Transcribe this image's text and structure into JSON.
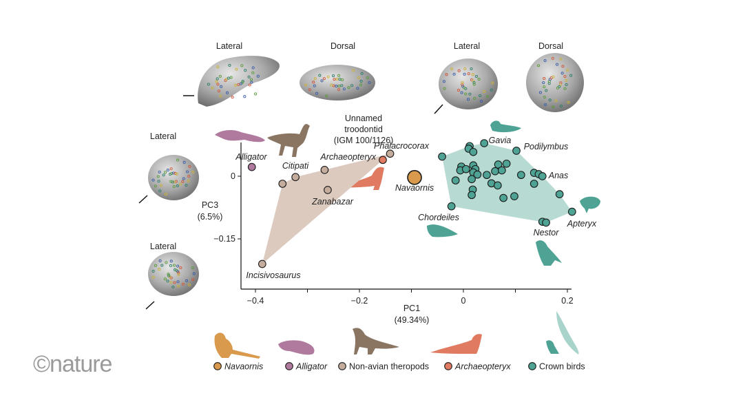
{
  "view_labels": {
    "top_left_lateral": "Lateral",
    "top_left_dorsal": "Dorsal",
    "top_right_lateral": "Lateral",
    "top_right_dorsal": "Dorsal",
    "left_lateral_1": "Lateral",
    "left_lateral_2": "Lateral"
  },
  "logo": "©nature",
  "colors": {
    "navaornis": "#d99a4e",
    "alligator": "#b07a9e",
    "theropods": "#c5ad9d",
    "archaeopteryx": "#e07a60",
    "crown_birds": "#4fa394",
    "theropod_hull": "#dccabe",
    "crown_hull": "#b7dad3"
  },
  "chart_data": {
    "type": "scatter",
    "xlabel": "PC1",
    "xlabel_sub": "(49.34%)",
    "ylabel": "PC3",
    "ylabel_sub": "(6.5%)",
    "xlim": [
      -0.427,
      0.209
    ],
    "ylim": [
      -0.268,
      0.08
    ],
    "x_ticks": [
      -0.4,
      -0.3,
      -0.2,
      -0.1,
      0,
      0.1,
      0.2
    ],
    "x_tick_labels": [
      "−0.4",
      "",
      "−0.2",
      "",
      "0",
      "",
      "0.2"
    ],
    "y_ticks": [
      0,
      -0.15
    ],
    "y_tick_labels": [
      "0",
      "−0.15"
    ],
    "grid": false,
    "legend_placement": "bottom",
    "legend": [
      {
        "label": "Navaornis",
        "group": "navaornis",
        "italic": true
      },
      {
        "label": "Alligator",
        "group": "alligator",
        "italic": true
      },
      {
        "label": "Non-avian theropods",
        "group": "theropods",
        "italic": false
      },
      {
        "label": "Archaeopteryx",
        "group": "archaeopteryx",
        "italic": true
      },
      {
        "label": "Crown birds",
        "group": "crown_birds",
        "italic": false
      }
    ],
    "series": [
      {
        "group": "alligator",
        "points": [
          {
            "x": -0.407,
            "y": 0.022,
            "label": "Alligator"
          }
        ]
      },
      {
        "group": "theropods",
        "hull": true,
        "points": [
          {
            "x": -0.323,
            "y": -0.002,
            "label": "Citipati"
          },
          {
            "x": -0.348,
            "y": -0.018
          },
          {
            "x": -0.267,
            "y": 0.015
          },
          {
            "x": -0.261,
            "y": -0.033,
            "label": "Zanabazar"
          },
          {
            "x": -0.387,
            "y": -0.21,
            "label": "Incisivosaurus"
          },
          {
            "x": -0.141,
            "y": 0.054,
            "label": "Unnamed troodontid (IGM 100/1126)"
          }
        ]
      },
      {
        "group": "archaeopteryx",
        "points": [
          {
            "x": -0.155,
            "y": 0.039,
            "label": "Archaeopteryx"
          }
        ]
      },
      {
        "group": "navaornis",
        "big": true,
        "points": [
          {
            "x": -0.094,
            "y": -0.003,
            "label": "Navaornis"
          }
        ]
      },
      {
        "group": "crown_birds",
        "hull": true,
        "points": [
          {
            "x": -0.041,
            "y": 0.047,
            "label": "Phalacrocorax"
          },
          {
            "x": 0.012,
            "y": 0.072
          },
          {
            "x": 0.01,
            "y": 0.066
          },
          {
            "x": 0.019,
            "y": 0.058
          },
          {
            "x": 0.04,
            "y": 0.079,
            "label": "Gavia"
          },
          {
            "x": 0.102,
            "y": 0.061,
            "label": "Podilymbus"
          },
          {
            "x": -0.004,
            "y": 0.023
          },
          {
            "x": -0.006,
            "y": 0.014
          },
          {
            "x": 0.005,
            "y": 0.017
          },
          {
            "x": 0.019,
            "y": 0.026
          },
          {
            "x": 0.023,
            "y": 0.017
          },
          {
            "x": 0.019,
            "y": 0.009
          },
          {
            "x": 0.027,
            "y": 0.004
          },
          {
            "x": 0.016,
            "y": -0.007
          },
          {
            "x": -0.015,
            "y": -0.01
          },
          {
            "x": 0.045,
            "y": 0.003
          },
          {
            "x": 0.054,
            "y": -0.017
          },
          {
            "x": 0.066,
            "y": -0.022
          },
          {
            "x": 0.061,
            "y": 0.012
          },
          {
            "x": 0.067,
            "y": 0.028
          },
          {
            "x": 0.074,
            "y": 0.014
          },
          {
            "x": 0.083,
            "y": 0.03
          },
          {
            "x": 0.111,
            "y": 0.003
          },
          {
            "x": 0.136,
            "y": 0.008
          },
          {
            "x": 0.145,
            "y": 0.005
          },
          {
            "x": 0.152,
            "y": 0.0,
            "label": "Anas"
          },
          {
            "x": 0.136,
            "y": -0.018
          },
          {
            "x": 0.018,
            "y": -0.032
          },
          {
            "x": 0.016,
            "y": -0.045
          },
          {
            "x": 0.077,
            "y": -0.052
          },
          {
            "x": 0.098,
            "y": -0.048
          },
          {
            "x": 0.185,
            "y": -0.043
          },
          {
            "x": -0.023,
            "y": -0.072,
            "label": "Chordeiles"
          },
          {
            "x": 0.209,
            "y": -0.085,
            "label": "Apteryx"
          },
          {
            "x": 0.152,
            "y": -0.109
          },
          {
            "x": 0.159,
            "y": -0.111,
            "label": "Nestor"
          }
        ]
      }
    ]
  }
}
